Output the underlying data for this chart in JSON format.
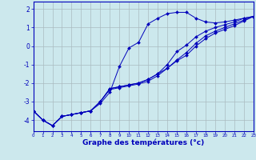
{
  "xlabel": "Graphe des températures (°c)",
  "background_color": "#cce8ed",
  "line_color": "#0000bb",
  "marker_color": "#0000bb",
  "grid_color": "#aabbc0",
  "xlim": [
    0,
    23
  ],
  "ylim": [
    -4.6,
    2.4
  ],
  "xticks": [
    0,
    1,
    2,
    3,
    4,
    5,
    6,
    7,
    8,
    9,
    10,
    11,
    12,
    13,
    14,
    15,
    16,
    17,
    18,
    19,
    20,
    21,
    22,
    23
  ],
  "yticks": [
    -4,
    -3,
    -2,
    -1,
    0,
    1,
    2
  ],
  "series": [
    [
      -3.5,
      -4.0,
      -4.3,
      -3.8,
      -3.7,
      -3.6,
      -3.5,
      -3.1,
      -2.5,
      -1.1,
      -0.1,
      0.2,
      1.2,
      1.5,
      1.75,
      1.82,
      1.82,
      1.5,
      1.3,
      1.25,
      1.3,
      1.4,
      1.5,
      1.6
    ],
    [
      -3.5,
      -4.0,
      -4.3,
      -3.8,
      -3.7,
      -3.6,
      -3.5,
      -3.0,
      -2.3,
      -2.2,
      -2.1,
      -2.0,
      -1.8,
      -1.5,
      -1.0,
      -0.3,
      0.05,
      0.5,
      0.8,
      1.0,
      1.15,
      1.3,
      1.5,
      1.6
    ],
    [
      -3.5,
      -4.0,
      -4.3,
      -3.8,
      -3.7,
      -3.6,
      -3.5,
      -3.0,
      -2.3,
      -2.2,
      -2.1,
      -2.0,
      -1.8,
      -1.5,
      -1.2,
      -0.8,
      -0.5,
      0.0,
      0.4,
      0.7,
      0.9,
      1.1,
      1.35,
      1.6
    ],
    [
      -3.5,
      -4.0,
      -4.3,
      -3.8,
      -3.7,
      -3.6,
      -3.5,
      -3.0,
      -2.35,
      -2.25,
      -2.15,
      -2.05,
      -1.9,
      -1.6,
      -1.2,
      -0.75,
      -0.35,
      0.15,
      0.55,
      0.8,
      1.0,
      1.2,
      1.4,
      1.6
    ]
  ]
}
